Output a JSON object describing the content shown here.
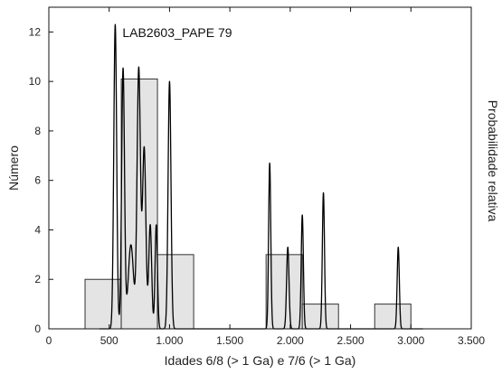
{
  "chart_data": {
    "type": "bar",
    "annotation": "LAB2603_PAPE 79",
    "xlabel": "Idades 6/8 (> 1 Ga) e 7/6 (> 1 Ga)",
    "ylabel": "Número",
    "y2label": "Probabilidade relativa",
    "xlim": [
      0,
      3500
    ],
    "ylim": [
      0,
      13
    ],
    "x_ticks": [
      0,
      500,
      1000,
      1500,
      2000,
      2500,
      3000,
      3500
    ],
    "x_tick_labels": [
      "0",
      "500",
      "1.000",
      "1.500",
      "2.000",
      "2.500",
      "3.000",
      "3.500"
    ],
    "y_ticks": [
      0,
      2,
      4,
      6,
      8,
      10,
      12
    ],
    "y_tick_labels": [
      "0",
      "2",
      "4",
      "6",
      "8",
      "10",
      "12"
    ],
    "grid": false,
    "histogram": {
      "name": "Número",
      "bins": [
        {
          "x0": 300,
          "x1": 600,
          "value": 2
        },
        {
          "x0": 600,
          "x1": 900,
          "value": 10.1
        },
        {
          "x0": 900,
          "x1": 1200,
          "value": 3
        },
        {
          "x0": 1800,
          "x1": 2100,
          "value": 3
        },
        {
          "x0": 2100,
          "x1": 2400,
          "value": 1
        },
        {
          "x0": 2700,
          "x1": 3000,
          "value": 1
        }
      ]
    },
    "probability_curve": {
      "name": "Probabilidade relativa",
      "peaks": [
        {
          "x": 550,
          "height": 12.3,
          "width": 12
        },
        {
          "x": 615,
          "height": 10.5,
          "width": 12
        },
        {
          "x": 680,
          "height": 3.4,
          "width": 22
        },
        {
          "x": 745,
          "height": 10.5,
          "width": 14
        },
        {
          "x": 790,
          "height": 7.3,
          "width": 14
        },
        {
          "x": 840,
          "height": 4.2,
          "width": 12
        },
        {
          "x": 890,
          "height": 4.2,
          "width": 10
        },
        {
          "x": 1000,
          "height": 10.0,
          "width": 12
        },
        {
          "x": 1830,
          "height": 6.7,
          "width": 9
        },
        {
          "x": 1980,
          "height": 3.3,
          "width": 10
        },
        {
          "x": 2100,
          "height": 4.6,
          "width": 9
        },
        {
          "x": 2275,
          "height": 5.5,
          "width": 9
        },
        {
          "x": 2895,
          "height": 3.3,
          "width": 9
        }
      ]
    }
  }
}
